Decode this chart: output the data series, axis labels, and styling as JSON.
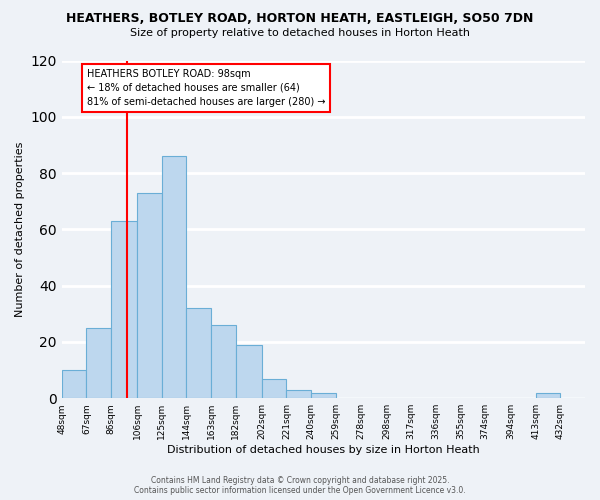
{
  "title": "HEATHERS, BOTLEY ROAD, HORTON HEATH, EASTLEIGH, SO50 7DN",
  "subtitle": "Size of property relative to detached houses in Horton Heath",
  "xlabel": "Distribution of detached houses by size in Horton Heath",
  "ylabel": "Number of detached properties",
  "bar_color": "#bdd7ee",
  "bar_edge_color": "#6aaed6",
  "bin_edges": [
    48,
    67,
    86,
    106,
    125,
    144,
    163,
    182,
    202,
    221,
    240,
    259,
    278,
    298,
    317,
    336,
    355,
    374,
    394,
    413,
    432,
    451
  ],
  "bin_labels": [
    "48sqm",
    "67sqm",
    "86sqm",
    "106sqm",
    "125sqm",
    "144sqm",
    "163sqm",
    "182sqm",
    "202sqm",
    "221sqm",
    "240sqm",
    "259sqm",
    "278sqm",
    "298sqm",
    "317sqm",
    "336sqm",
    "355sqm",
    "374sqm",
    "394sqm",
    "413sqm",
    "432sqm"
  ],
  "counts": [
    10,
    25,
    63,
    73,
    86,
    32,
    26,
    19,
    7,
    3,
    2,
    0,
    0,
    0,
    0,
    0,
    0,
    0,
    0,
    2,
    0
  ],
  "ylim": [
    0,
    120
  ],
  "yticks": [
    0,
    20,
    40,
    60,
    80,
    100,
    120
  ],
  "property_line_x": 98,
  "annotation_title": "HEATHERS BOTLEY ROAD: 98sqm",
  "annotation_line1": "← 18% of detached houses are smaller (64)",
  "annotation_line2": "81% of semi-detached houses are larger (280) →",
  "footer_line1": "Contains HM Land Registry data © Crown copyright and database right 2025.",
  "footer_line2": "Contains public sector information licensed under the Open Government Licence v3.0.",
  "background_color": "#eef2f7",
  "grid_color": "#ffffff"
}
